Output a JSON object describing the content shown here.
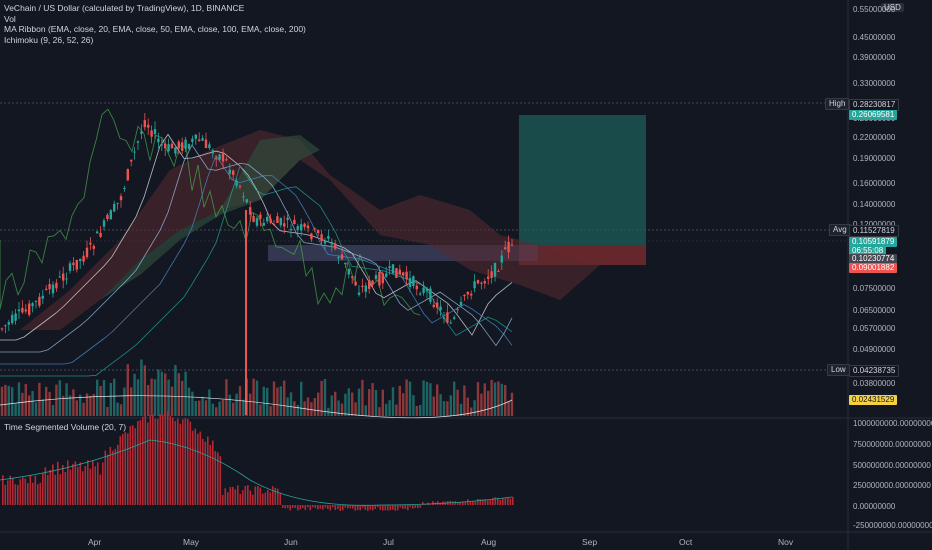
{
  "legend": {
    "title": "VeChain / US Dollar (calculated by TradingView), 1D, BINANCE",
    "vol": "Vol",
    "ma_ribbon": "MA Ribbon (EMA, close, 20, EMA, close, 50, EMA, close, 100, EMA, close, 200)",
    "ichimoku": "Ichimoku (9, 26, 52, 26)"
  },
  "lower_pane": {
    "title": "Time Segmented Volume (20, 7)"
  },
  "currency": "USD",
  "price_axis": [
    "0.55000000",
    "0.45000000",
    "0.39000000",
    "0.33000000",
    "0.28000000",
    "0.25000000",
    "0.22000000",
    "0.19000000",
    "0.16000000",
    "0.14000000",
    "0.12000000",
    "0.07500000",
    "0.06500000",
    "0.05700000",
    "0.04900000",
    "0.03800000"
  ],
  "tsv_axis": [
    "1000000000.00000000",
    "750000000.00000000",
    "500000000.00000000",
    "250000000.00000000",
    "0.00000000",
    "-250000000.00000000"
  ],
  "x_axis": [
    "Apr",
    "May",
    "Jun",
    "Jul",
    "Aug",
    "Sep",
    "Oct",
    "Nov"
  ],
  "tags": {
    "high_label": "High",
    "high_value": "0.28230817",
    "target": "0.26069581",
    "avg_label": "Avg",
    "avg_value": "0.11527819",
    "last_price": "0.10591879",
    "countdown": "06:55:08",
    "entry": "0.10230774",
    "stop": "0.09001882",
    "low_label": "Low",
    "low_value": "0.04238735",
    "volume": "0.02431529"
  },
  "colors": {
    "background": "#131722",
    "up": "#26a69a",
    "down": "#ef5350",
    "target_zone": "#1e5e5a",
    "stop_zone": "#7a2a30",
    "kumo_green": "#2d4a3a",
    "kumo_red": "#5a2a30",
    "tsv": "#b22833",
    "lagging": "#4caf50"
  }
}
